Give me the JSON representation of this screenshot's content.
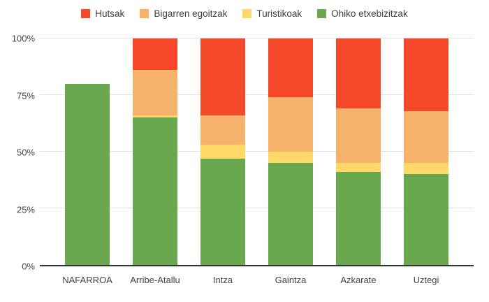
{
  "chart_data": {
    "type": "bar",
    "variant": "100-percent-stacked-column",
    "title": "",
    "xlabel": "",
    "ylabel": "",
    "categories": [
      "NAFARROA",
      "Arribe-Atallu",
      "Intza",
      "Gaintza",
      "Azkarate",
      "Uztegi"
    ],
    "series": [
      {
        "name": "Ohiko etxebizitzak",
        "color": "#6AA84F",
        "values": [
          80,
          65,
          47,
          45,
          41,
          40
        ]
      },
      {
        "name": "Turistikoak",
        "color": "#FFD966",
        "values": [
          0,
          1,
          6,
          5,
          4,
          5
        ]
      },
      {
        "name": "Bigarren egoitzak",
        "color": "#F6B26B",
        "values": [
          0,
          20,
          13,
          24,
          24,
          23
        ]
      },
      {
        "name": "Hutsak",
        "color": "#F6492C",
        "values": [
          0,
          14,
          34,
          26,
          31,
          32
        ]
      }
    ],
    "stack_order_bottom_to_top": [
      "Ohiko etxebizitzak",
      "Turistikoak",
      "Bigarren egoitzak",
      "Hutsak"
    ],
    "legend": {
      "position": "top",
      "items": [
        "Hutsak",
        "Bigarren egoitzak",
        "Turistikoak",
        "Ohiko etxebizitzak"
      ]
    },
    "y_axis": {
      "ticks": [
        "0%",
        "25%",
        "50%",
        "75%",
        "100%"
      ],
      "tick_values": [
        0,
        25,
        50,
        75,
        100
      ],
      "ylim": [
        0,
        100
      ]
    },
    "grid": true,
    "style_colors": {
      "gridline": "#e3e3e3",
      "axis_line": "#333333",
      "text": "#444444",
      "background": "#ffffff"
    }
  }
}
